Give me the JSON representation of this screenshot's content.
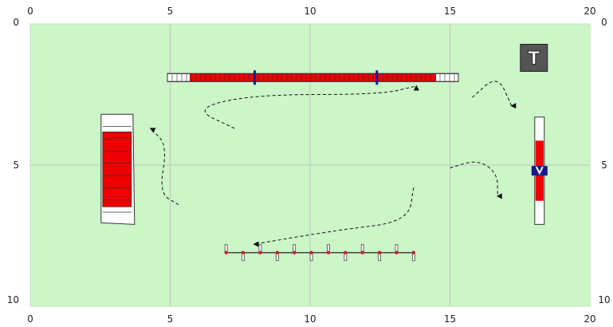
{
  "chart_data": {
    "type": "diagram",
    "x_range": [
      0,
      20
    ],
    "y_range": [
      0,
      10
    ],
    "x_ticks": [
      "0",
      "5",
      "10",
      "15",
      "20"
    ],
    "y_ticks": [
      "0",
      "5",
      "10"
    ],
    "grid": true,
    "field_color": "#ccf5c8",
    "obstacles": [
      {
        "name": "dog-walk",
        "kind": "dog-walk",
        "from": [
          4.9,
          1.9
        ],
        "to": [
          15.3,
          1.9
        ],
        "contact_color": "#ee0000"
      },
      {
        "name": "a-frame",
        "kind": "a-frame",
        "x": 3.1,
        "y_from": 3.2,
        "y_to": 7.1,
        "contact_color": "#ee0000"
      },
      {
        "name": "seesaw",
        "kind": "seesaw",
        "x": 18.2,
        "y_from": 3.3,
        "y_to": 7.1,
        "contact_color": "#ee0000"
      },
      {
        "name": "weave-poles",
        "kind": "weave",
        "from": [
          7.0,
          8.1
        ],
        "to": [
          13.7,
          8.1
        ],
        "poles": 12
      },
      {
        "name": "table",
        "kind": "table",
        "x": 18.0,
        "y": 1.2,
        "label": "T"
      }
    ],
    "paths": [
      {
        "name": "path-dogwalk-exit",
        "points": [
          [
            7.3,
            3.7
          ],
          [
            5.8,
            3.0
          ],
          [
            8.0,
            2.5
          ],
          [
            12.5,
            2.5
          ],
          [
            13.8,
            2.2
          ]
        ]
      },
      {
        "name": "path-to-aframe",
        "points": [
          [
            5.3,
            6.4
          ],
          [
            4.6,
            6.0
          ],
          [
            4.9,
            4.3
          ],
          [
            4.3,
            3.7
          ]
        ]
      },
      {
        "name": "path-to-weave",
        "points": [
          [
            13.7,
            5.8
          ],
          [
            13.5,
            7.0
          ],
          [
            11.0,
            7.3
          ],
          [
            8.0,
            7.8
          ]
        ]
      },
      {
        "name": "path-to-seesaw",
        "points": [
          [
            15.8,
            2.6
          ],
          [
            16.7,
            1.8
          ],
          [
            17.2,
            2.9
          ]
        ]
      },
      {
        "name": "path-seesaw-exit",
        "points": [
          [
            15.0,
            5.1
          ],
          [
            16.0,
            4.8
          ],
          [
            16.7,
            5.3
          ],
          [
            16.7,
            6.1
          ]
        ]
      }
    ]
  }
}
